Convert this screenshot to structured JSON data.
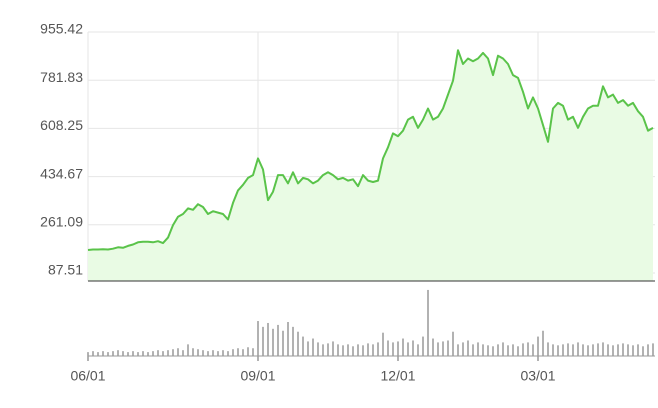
{
  "chart_data": {
    "type": "area",
    "categories": [
      "06/01",
      null,
      null,
      null,
      null,
      null,
      null,
      null,
      null,
      null,
      null,
      null,
      null,
      null,
      null,
      null,
      null,
      null,
      null,
      null,
      null,
      null,
      null,
      null,
      null,
      null,
      null,
      null,
      null,
      null,
      null,
      null,
      null,
      null,
      "09/01",
      null,
      null,
      null,
      null,
      null,
      null,
      null,
      null,
      null,
      null,
      null,
      null,
      null,
      null,
      null,
      null,
      null,
      null,
      null,
      null,
      null,
      null,
      null,
      null,
      null,
      null,
      null,
      "12/01",
      null,
      null,
      null,
      null,
      null,
      null,
      null,
      null,
      null,
      null,
      null,
      null,
      null,
      null,
      null,
      null,
      null,
      null,
      null,
      null,
      null,
      null,
      null,
      null,
      null,
      null,
      null,
      "03/01",
      null,
      null,
      null,
      null,
      null,
      null,
      null,
      null,
      null,
      null,
      null,
      null,
      null,
      null,
      null,
      null,
      null,
      null,
      null,
      null,
      null,
      null,
      null
    ],
    "series": [
      {
        "color": "#5ac34a",
        "fill": "#e9fbe4",
        "values": [
          170,
          172,
          172,
          173,
          172,
          175,
          180,
          178,
          185,
          190,
          198,
          200,
          200,
          198,
          202,
          195,
          215,
          260,
          290,
          300,
          320,
          315,
          335,
          325,
          300,
          310,
          305,
          300,
          280,
          340,
          385,
          405,
          430,
          440,
          500,
          460,
          350,
          380,
          440,
          440,
          410,
          450,
          410,
          430,
          425,
          410,
          420,
          440,
          450,
          440,
          425,
          430,
          420,
          425,
          400,
          440,
          420,
          415,
          420,
          500,
          540,
          590,
          580,
          600,
          640,
          650,
          610,
          640,
          680,
          640,
          650,
          680,
          730,
          780,
          890,
          840,
          860,
          850,
          860,
          880,
          860,
          800,
          870,
          860,
          840,
          800,
          790,
          740,
          680,
          720,
          680,
          620,
          560,
          680,
          700,
          690,
          640,
          650,
          610,
          650,
          680,
          690,
          690,
          760,
          720,
          730,
          700,
          710,
          690,
          700,
          670,
          650,
          600,
          610
        ]
      },
      {
        "color": "#999999",
        "axis": "y2",
        "values": [
          4,
          5,
          4,
          5,
          4,
          5,
          6,
          5,
          4,
          5,
          4,
          5,
          4,
          5,
          6,
          5,
          6,
          7,
          8,
          6,
          12,
          8,
          7,
          6,
          5,
          6,
          5,
          6,
          5,
          7,
          8,
          7,
          9,
          8,
          36,
          30,
          34,
          28,
          32,
          26,
          35,
          30,
          25,
          20,
          15,
          18,
          14,
          12,
          13,
          15,
          12,
          11,
          12,
          10,
          12,
          11,
          13,
          12,
          14,
          24,
          16,
          14,
          15,
          18,
          14,
          16,
          12,
          20,
          68,
          18,
          14,
          15,
          16,
          25,
          12,
          14,
          16,
          12,
          14,
          12,
          11,
          10,
          12,
          14,
          11,
          12,
          10,
          13,
          14,
          12,
          20,
          26,
          14,
          12,
          11,
          12,
          13,
          12,
          14,
          12,
          11,
          12,
          13,
          14,
          12,
          11,
          12,
          13,
          12,
          11,
          12,
          10,
          12,
          13
        ]
      }
    ],
    "ylim": [
      58.5,
      955.42
    ],
    "yticks": [
      87.51,
      261.09,
      434.67,
      608.25,
      781.83,
      955.42
    ],
    "y2lim": [
      0,
      70
    ],
    "grid": true
  }
}
